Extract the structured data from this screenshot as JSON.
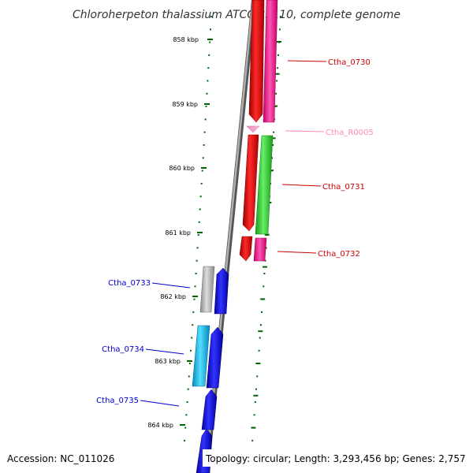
{
  "title": "Chloroherpeton thalassium ATCC 35110, complete genome",
  "ticks": [
    "858 kbp",
    "859 kbp",
    "860 kbp",
    "861 kbp",
    "862 kbp",
    "863 kbp",
    "864 kbp"
  ],
  "genes": [
    {
      "id": "Ctha_0730",
      "strand": "plus",
      "color": "#dd0000",
      "label_color": "#cc0000"
    },
    {
      "id": "Ctha_R0005",
      "strand": "plus",
      "color": "#ff99cc",
      "label_color": "#ff88bb"
    },
    {
      "id": "Ctha_0731",
      "strand": "plus",
      "color": "#dd0000",
      "label_color": "#cc0000"
    },
    {
      "id": "Ctha_0732",
      "strand": "plus",
      "color": "#ff1493",
      "label_color": "#cc0000"
    },
    {
      "id": "Ctha_0733",
      "strand": "minus",
      "color": "#aaaaaa",
      "label_color": "#0000cc"
    },
    {
      "id": "Ctha_0734",
      "strand": "minus",
      "color": "#00bbee",
      "label_color": "#0000cc"
    },
    {
      "id": "Ctha_0735",
      "strand": "minus",
      "color": "#0000ee",
      "label_color": "#0000cc"
    }
  ],
  "colors": {
    "cds_forward": "#dd0000",
    "rna": "#ff1493",
    "gc_track": "#33cc33",
    "cds_reverse": "#0000ee",
    "backbone": "#888888",
    "tick": "#006600"
  },
  "footer": {
    "accession": "Accession: NC_011026",
    "topology": "Topology: circular; Length: 3,293,456 bp; Genes: 2,757"
  }
}
